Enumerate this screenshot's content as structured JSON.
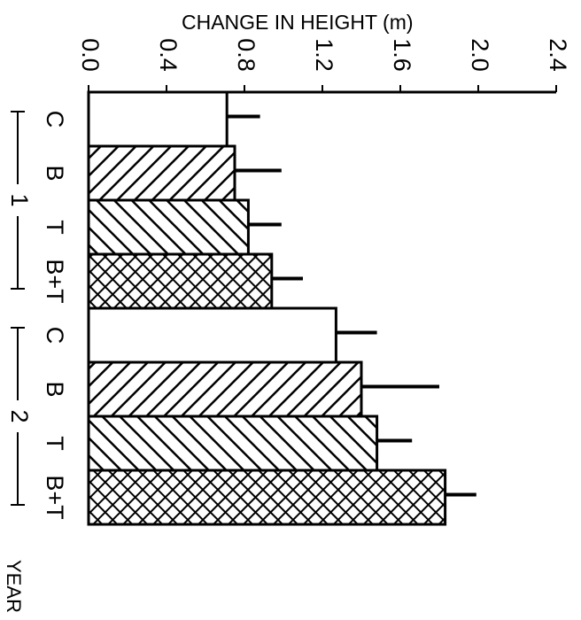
{
  "chart_data": {
    "type": "bar",
    "orientation": "horizontal",
    "title": "",
    "xlabel": "CHANGE IN HEIGHT (m)",
    "ylabel": "YEAR",
    "xlim": [
      0,
      2.4
    ],
    "x_ticks": [
      "0.0",
      "0.4",
      "0.8",
      "1.2",
      "1.6",
      "2.0",
      "2.4"
    ],
    "groups": [
      {
        "label": "1",
        "categories": [
          "C",
          "B",
          "T",
          "B+T"
        ]
      },
      {
        "label": "2",
        "categories": [
          "C",
          "B",
          "T",
          "B+T"
        ]
      }
    ],
    "series": [
      {
        "name": "C",
        "fill": "white",
        "values": [
          0.71,
          1.27
        ],
        "errors": [
          0.17,
          0.21
        ]
      },
      {
        "name": "B",
        "fill": "diagonal-hatch-down",
        "values": [
          0.75,
          1.4
        ],
        "errors": [
          0.24,
          0.4
        ]
      },
      {
        "name": "T",
        "fill": "diagonal-hatch-up",
        "values": [
          0.82,
          1.48
        ],
        "errors": [
          0.17,
          0.18
        ]
      },
      {
        "name": "B+T",
        "fill": "cross-hatch",
        "values": [
          0.94,
          1.83
        ],
        "errors": [
          0.16,
          0.16
        ]
      }
    ],
    "grid": false,
    "colors": {
      "ink": "#000000",
      "background": "#ffffff"
    }
  }
}
